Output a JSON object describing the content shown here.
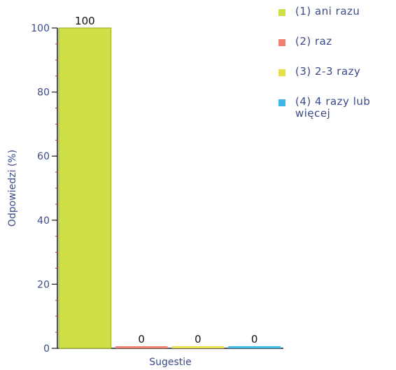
{
  "chart_data": {
    "type": "bar",
    "xlabel": "Sugestie",
    "ylabel": "Odpowiedzi (%)",
    "ylim": [
      0,
      100
    ],
    "yticks": [
      0,
      20,
      40,
      60,
      80,
      100
    ],
    "grid": false,
    "legend_position": "top-right",
    "series": [
      {
        "name": "(1) ani razu",
        "value": 100,
        "label": "100",
        "color": "#cfe046"
      },
      {
        "name": "(2) raz",
        "value": 0,
        "label": "0",
        "color": "#f08070"
      },
      {
        "name": "(3) 2-3 razy",
        "value": 0,
        "label": "0",
        "color": "#e8e04a"
      },
      {
        "name": "(4) 4 razy lub więcej",
        "value": 0,
        "label": "0",
        "color": "#3fb6e8"
      }
    ]
  }
}
